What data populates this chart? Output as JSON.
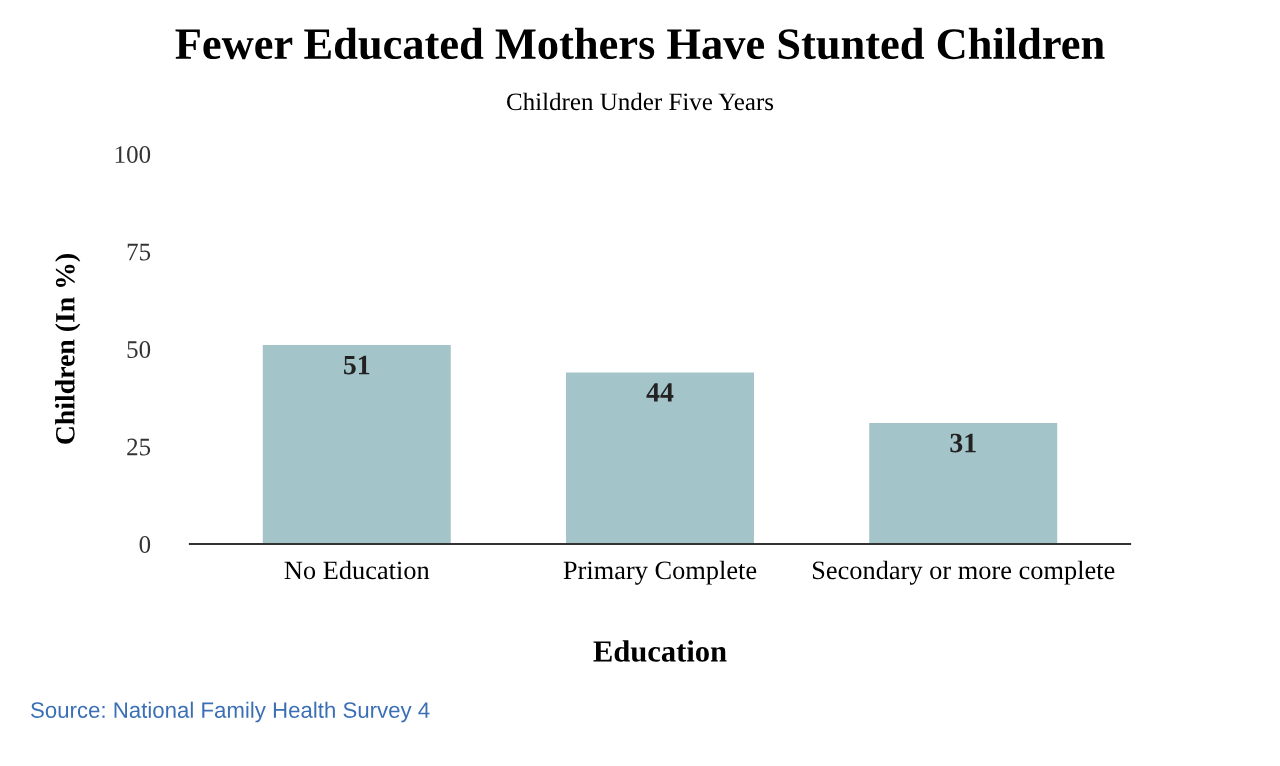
{
  "chart_data": {
    "type": "bar",
    "title": "Fewer Educated Mothers Have Stunted Children",
    "subtitle": "Children Under Five Years",
    "xlabel": "Education",
    "ylabel": "Children (In %)",
    "categories": [
      "No Education",
      "Primary Complete",
      "Secondary or more complete"
    ],
    "values": [
      51,
      44,
      31
    ],
    "color": "#a3c4c9",
    "ylim": [
      0,
      100
    ],
    "yticks": [
      0,
      25,
      50,
      75,
      100
    ],
    "grid": false,
    "data_labels": true,
    "annotations": [
      "Source: National Family Health Survey 4"
    ]
  }
}
